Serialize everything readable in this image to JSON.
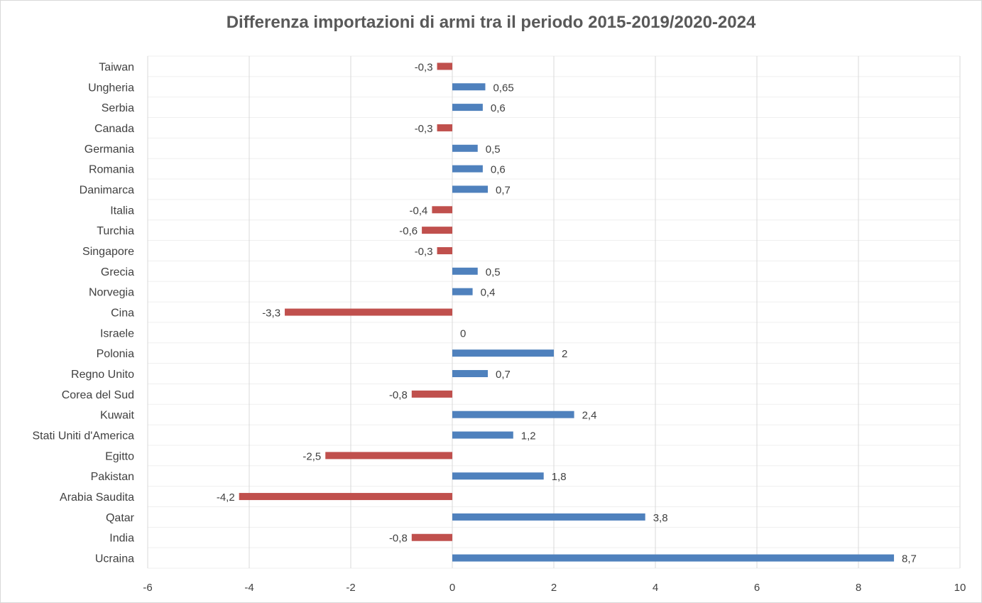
{
  "chart_data": {
    "type": "bar",
    "orientation": "horizontal",
    "title": "Differenza importazioni di armi tra il periodo 2015-2019/2020-2024",
    "xlabel": "",
    "ylabel": "",
    "xlim": [
      -6,
      10
    ],
    "xticks": [
      "-6",
      "-4",
      "-2",
      "0",
      "2",
      "4",
      "6",
      "8",
      "10"
    ],
    "grid": true,
    "legend": "none",
    "categories": [
      "Taiwan",
      "Ungheria",
      "Serbia",
      "Canada",
      "Germania",
      "Romania",
      "Danimarca",
      "Italia",
      "Turchia",
      "Singapore",
      "Grecia",
      "Norvegia",
      "Cina",
      "Israele",
      "Polonia",
      "Regno Unito",
      "Corea del Sud",
      "Kuwait",
      "Stati Uniti d'America",
      "Egitto",
      "Pakistan",
      "Arabia Saudita",
      "Qatar",
      "India",
      "Ucraina"
    ],
    "values": [
      -0.3,
      0.65,
      0.6,
      -0.3,
      0.5,
      0.6,
      0.7,
      -0.4,
      -0.6,
      -0.3,
      0.5,
      0.4,
      -3.3,
      0,
      2,
      0.7,
      -0.8,
      2.4,
      1.2,
      -2.5,
      1.8,
      -4.2,
      3.8,
      -0.8,
      8.7
    ],
    "data_labels": [
      "-0,3",
      "0,65",
      "0,6",
      "-0,3",
      "0,5",
      "0,6",
      "0,7",
      "-0,4",
      "-0,6",
      "-0,3",
      "0,5",
      "0,4",
      "-3,3",
      "0",
      "2",
      "0,7",
      "-0,8",
      "2,4",
      "1,2",
      "-2,5",
      "1,8",
      "-4,2",
      "3,8",
      "-0,8",
      "8,7"
    ],
    "colors": {
      "positive": "#4f81bd",
      "negative": "#c0504d",
      "grid": "#d9d9d9"
    }
  }
}
